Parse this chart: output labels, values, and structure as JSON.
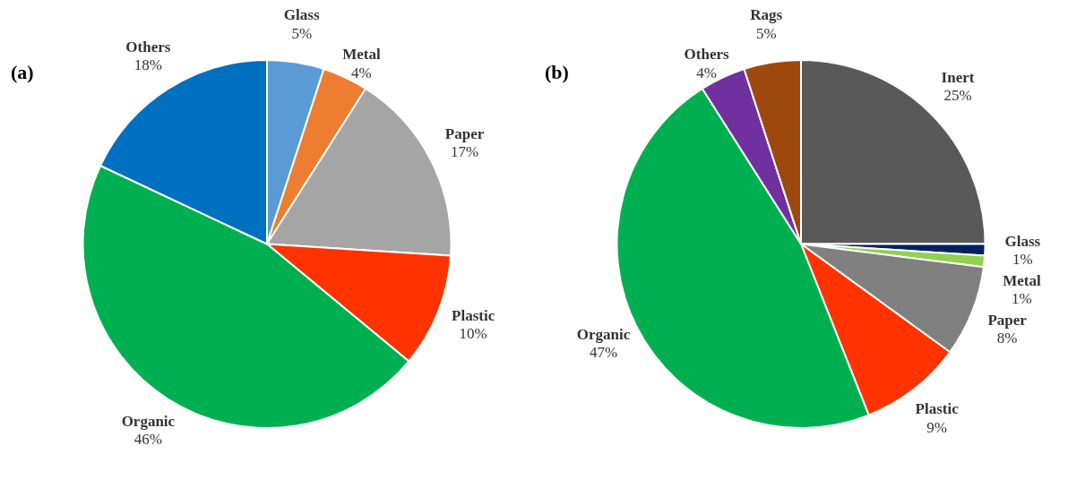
{
  "chart_data": [
    {
      "type": "pie",
      "title": "(a)",
      "legend": false,
      "categories": [
        "Glass",
        "Metal",
        "Paper",
        "Plastic",
        "Organic",
        "Others"
      ],
      "values": [
        5,
        4,
        17,
        10,
        46,
        18
      ],
      "value_labels": [
        "5%",
        "4%",
        "17%",
        "10%",
        "46%",
        "18%"
      ],
      "colors": [
        "#5b9bd5",
        "#ed7d31",
        "#a5a5a5",
        "#ff3300",
        "#00b050",
        "#0070c0"
      ]
    },
    {
      "type": "pie",
      "title": "(b)",
      "legend": false,
      "categories": [
        "Inert",
        "Glass",
        "Metal",
        "Paper",
        "Plastic",
        "Organic",
        "Others",
        "Rags"
      ],
      "values": [
        25,
        1,
        1,
        8,
        9,
        47,
        4,
        5
      ],
      "value_labels": [
        "25%",
        "1%",
        "1%",
        "8%",
        "9%",
        "47%",
        "4%",
        "5%"
      ],
      "colors": [
        "#595959",
        "#002060",
        "#92d050",
        "#808080",
        "#ff3300",
        "#00b050",
        "#7030a0",
        "#9e480e"
      ]
    }
  ]
}
